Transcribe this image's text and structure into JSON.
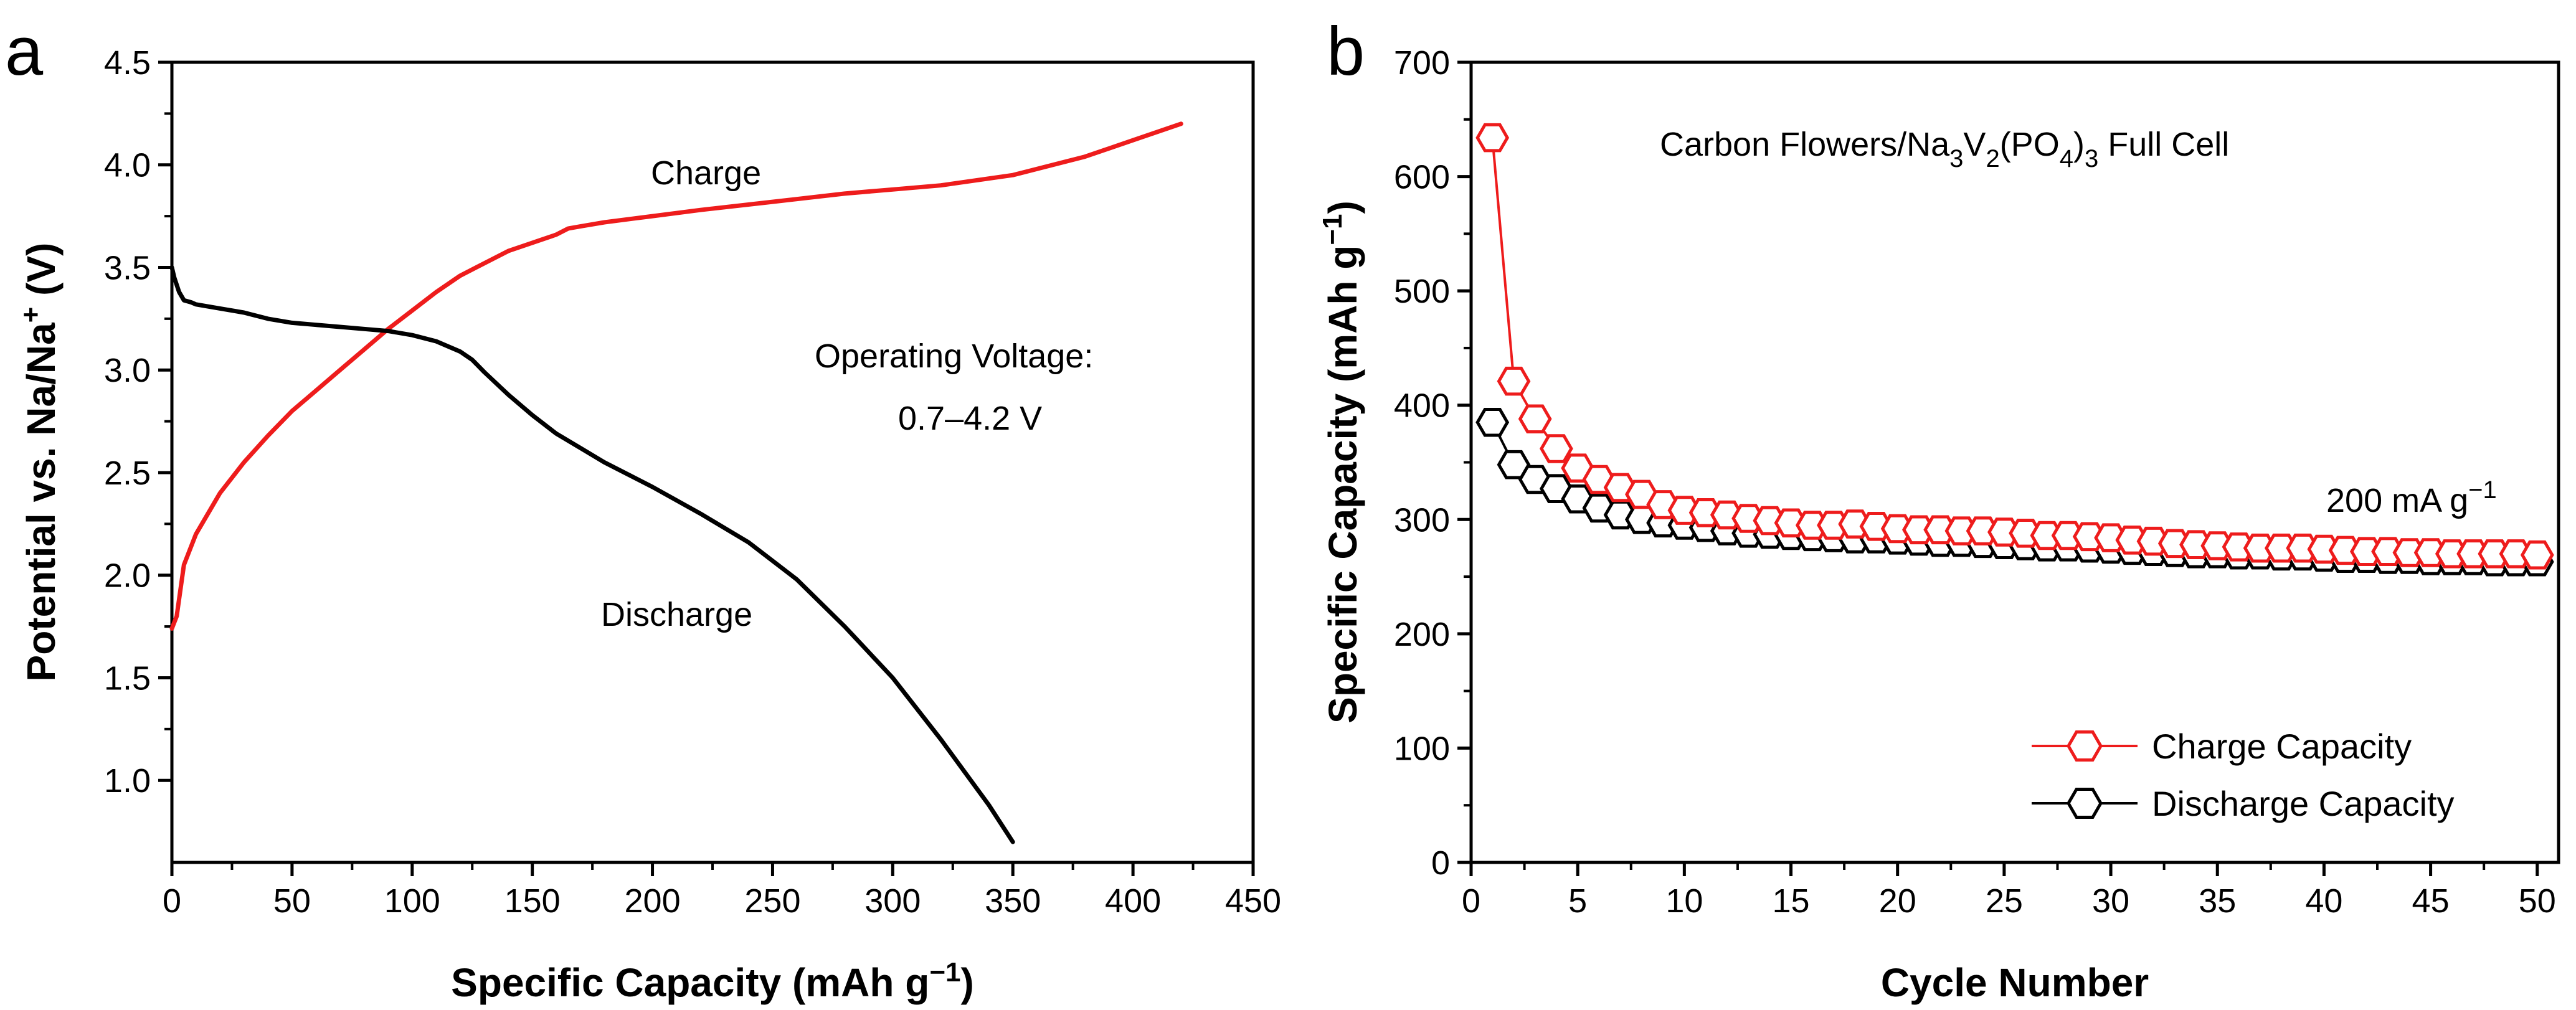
{
  "colors": {
    "charge": "#ee1c1c",
    "discharge": "#000000",
    "axis": "#000000"
  },
  "panels": {
    "a": {
      "letter": "a",
      "annotations": {
        "charge_label": "Charge",
        "discharge_label": "Discharge",
        "voltage_title": "Operating Voltage:",
        "voltage_range": "0.7–4.2 V"
      }
    },
    "b": {
      "letter": "b",
      "annotations": {
        "cell_name": "Carbon Flowers/Na3V2(PO4)3 Full Cell",
        "current_density": "200 mA g−1"
      }
    }
  },
  "chart_data": [
    {
      "id": "a",
      "type": "line",
      "title": "",
      "xlabel": "Specific Capacity (mAh g−1)",
      "ylabel": "Potential vs. Na/Na+ (V)",
      "xlim": [
        0,
        450
      ],
      "ylim": [
        0.6,
        4.5
      ],
      "xticks": [
        0,
        50,
        100,
        150,
        200,
        250,
        300,
        350,
        400,
        450
      ],
      "yticks": [
        1.0,
        1.5,
        2.0,
        2.5,
        3.0,
        3.5,
        4.0,
        4.5
      ],
      "grid": false,
      "series": [
        {
          "name": "Charge",
          "color": "#ee1c1c",
          "x": [
            0,
            2,
            5,
            10,
            20,
            30,
            40,
            50,
            60,
            70,
            80,
            90,
            100,
            110,
            120,
            130,
            140,
            150,
            160,
            165,
            170,
            180,
            200,
            220,
            250,
            280,
            300,
            320,
            350,
            380,
            400,
            420
          ],
          "y": [
            1.74,
            1.8,
            2.05,
            2.2,
            2.4,
            2.55,
            2.68,
            2.8,
            2.9,
            3.0,
            3.1,
            3.2,
            3.29,
            3.38,
            3.46,
            3.52,
            3.58,
            3.62,
            3.66,
            3.69,
            3.7,
            3.72,
            3.75,
            3.78,
            3.82,
            3.86,
            3.88,
            3.9,
            3.95,
            4.04,
            4.12,
            4.2
          ]
        },
        {
          "name": "Discharge",
          "color": "#000000",
          "x": [
            0,
            1,
            3,
            5,
            8,
            10,
            20,
            30,
            40,
            50,
            60,
            70,
            80,
            90,
            100,
            110,
            120,
            125,
            130,
            140,
            150,
            160,
            170,
            180,
            200,
            220,
            240,
            260,
            280,
            300,
            320,
            340,
            350
          ],
          "y": [
            3.5,
            3.45,
            3.38,
            3.34,
            3.33,
            3.32,
            3.3,
            3.28,
            3.25,
            3.23,
            3.22,
            3.21,
            3.2,
            3.19,
            3.17,
            3.14,
            3.09,
            3.05,
            2.99,
            2.88,
            2.78,
            2.69,
            2.62,
            2.55,
            2.43,
            2.3,
            2.16,
            1.98,
            1.75,
            1.5,
            1.2,
            0.88,
            0.7
          ]
        }
      ]
    },
    {
      "id": "b",
      "type": "scatter",
      "title": "",
      "xlabel": "Cycle Number",
      "ylabel": "Specific Capacity (mAh g−1)",
      "xlim": [
        0,
        51
      ],
      "ylim": [
        0,
        700
      ],
      "xticks": [
        0,
        5,
        10,
        15,
        20,
        25,
        30,
        35,
        40,
        45,
        50
      ],
      "yticks": [
        0,
        100,
        200,
        300,
        400,
        500,
        600,
        700
      ],
      "grid": false,
      "legend": "bottom-right",
      "series": [
        {
          "name": "Charge Capacity",
          "color": "#ee1c1c",
          "x": [
            1,
            2,
            3,
            4,
            5,
            6,
            7,
            8,
            9,
            10,
            11,
            12,
            13,
            14,
            15,
            16,
            17,
            18,
            19,
            20,
            21,
            22,
            23,
            24,
            25,
            26,
            27,
            28,
            29,
            30,
            31,
            32,
            33,
            34,
            35,
            36,
            37,
            38,
            39,
            40,
            41,
            42,
            43,
            44,
            45,
            46,
            47,
            48,
            49,
            50
          ],
          "y": [
            634,
            421,
            388,
            362,
            345,
            335,
            328,
            322,
            313,
            308,
            306,
            304,
            301,
            299,
            297,
            295,
            295,
            296,
            294,
            292,
            291,
            291,
            290,
            290,
            289,
            288,
            286,
            286,
            285,
            284,
            282,
            281,
            279,
            278,
            277,
            276,
            275,
            275,
            275,
            274,
            273,
            272,
            272,
            271,
            271,
            270,
            270,
            270,
            270,
            269
          ]
        },
        {
          "name": "Discharge Capacity",
          "color": "#000000",
          "x": [
            1,
            2,
            3,
            4,
            5,
            6,
            7,
            8,
            9,
            10,
            11,
            12,
            13,
            14,
            15,
            16,
            17,
            18,
            19,
            20,
            21,
            22,
            23,
            24,
            25,
            26,
            27,
            28,
            29,
            30,
            31,
            32,
            33,
            34,
            35,
            36,
            37,
            38,
            39,
            40,
            41,
            42,
            43,
            44,
            45,
            46,
            47,
            48,
            49,
            50
          ],
          "y": [
            385,
            348,
            335,
            327,
            318,
            310,
            304,
            300,
            297,
            295,
            293,
            290,
            288,
            287,
            286,
            285,
            284,
            283,
            283,
            282,
            281,
            280,
            280,
            279,
            278,
            277,
            276,
            276,
            275,
            274,
            273,
            272,
            271,
            270,
            270,
            269,
            269,
            268,
            268,
            267,
            266,
            266,
            265,
            265,
            264,
            264,
            264,
            263,
            263,
            263
          ]
        }
      ]
    }
  ]
}
